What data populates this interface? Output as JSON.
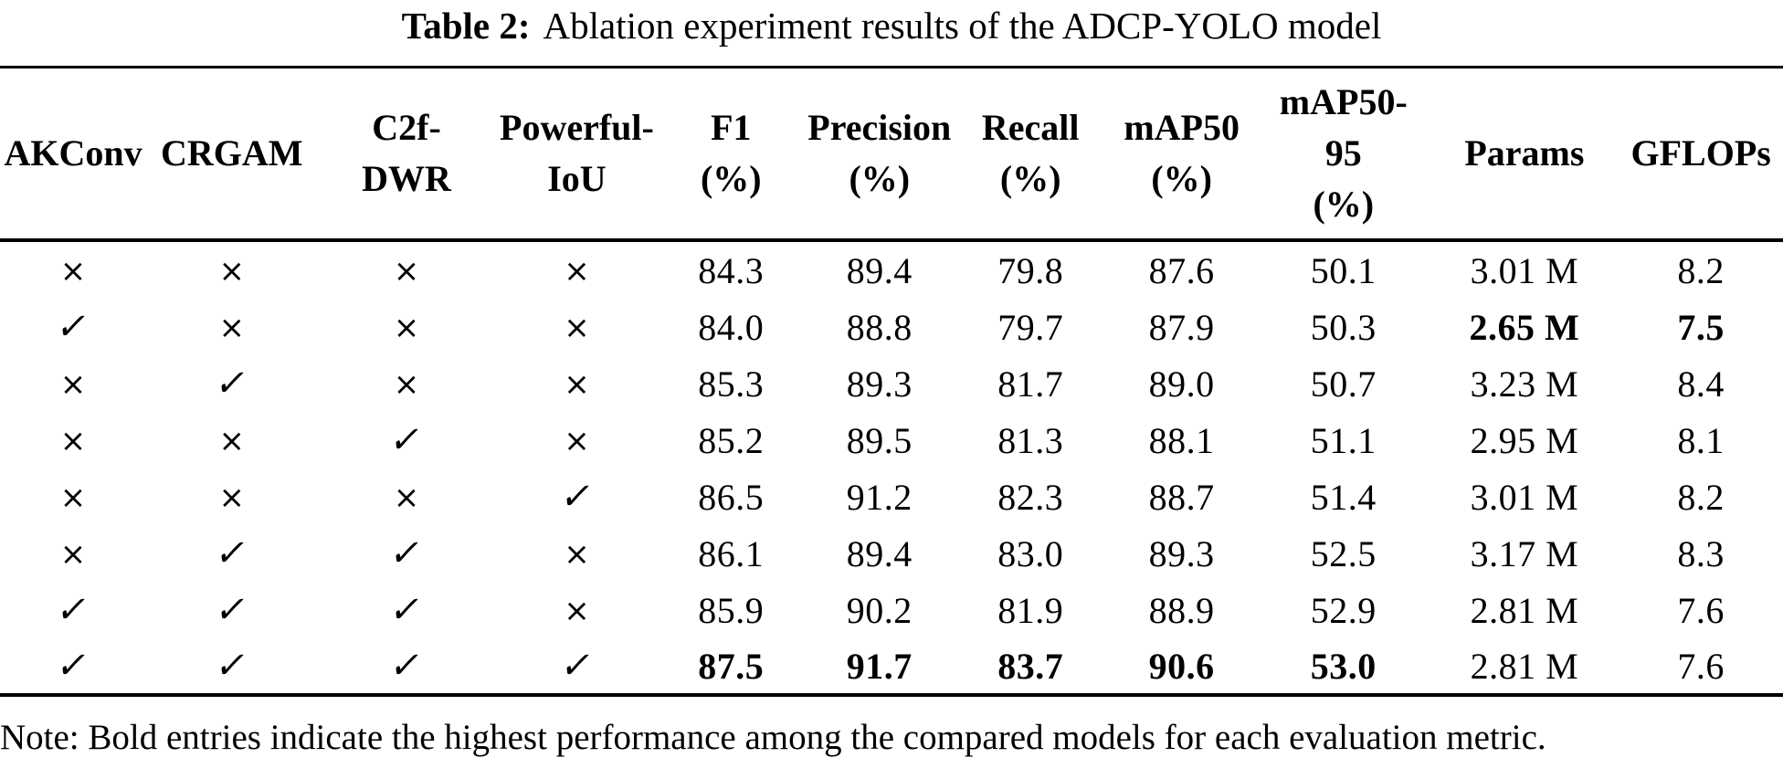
{
  "title": {
    "label": "Table 2:",
    "text": "Ablation experiment results of the ADCP-YOLO model"
  },
  "table": {
    "headers": [
      [
        "AKConv"
      ],
      [
        "CRGAM"
      ],
      [
        "C2f-",
        "DWR"
      ],
      [
        "Powerful-",
        "IoU"
      ],
      [
        "F1",
        "(%)"
      ],
      [
        "Precision",
        "(%)"
      ],
      [
        "Recall",
        "(%)"
      ],
      [
        "mAP50",
        "(%)"
      ],
      [
        "mAP50-",
        "95",
        "(%)"
      ],
      [
        "Params"
      ],
      [
        "GFLOPs"
      ]
    ],
    "column_keys": [
      "akconv",
      "crgam",
      "c2f-dwr",
      "powerful-iou",
      "f1-pct",
      "precision-pct",
      "recall-pct",
      "map50-pct",
      "map50-95-pct",
      "params",
      "gflops"
    ],
    "symbols": {
      "check": "✓",
      "cross": "×"
    },
    "rows": [
      {
        "cells": [
          "×",
          "×",
          "×",
          "×",
          "84.3",
          "89.4",
          "79.8",
          "87.6",
          "50.1",
          "3.01 M",
          "8.2"
        ],
        "bold": []
      },
      {
        "cells": [
          "✓",
          "×",
          "×",
          "×",
          "84.0",
          "88.8",
          "79.7",
          "87.9",
          "50.3",
          "2.65 M",
          "7.5"
        ],
        "bold": [
          9,
          10
        ]
      },
      {
        "cells": [
          "×",
          "✓",
          "×",
          "×",
          "85.3",
          "89.3",
          "81.7",
          "89.0",
          "50.7",
          "3.23 M",
          "8.4"
        ],
        "bold": []
      },
      {
        "cells": [
          "×",
          "×",
          "✓",
          "×",
          "85.2",
          "89.5",
          "81.3",
          "88.1",
          "51.1",
          "2.95 M",
          "8.1"
        ],
        "bold": []
      },
      {
        "cells": [
          "×",
          "×",
          "×",
          "✓",
          "86.5",
          "91.2",
          "82.3",
          "88.7",
          "51.4",
          "3.01 M",
          "8.2"
        ],
        "bold": []
      },
      {
        "cells": [
          "×",
          "✓",
          "✓",
          "×",
          "86.1",
          "89.4",
          "83.0",
          "89.3",
          "52.5",
          "3.17 M",
          "8.3"
        ],
        "bold": []
      },
      {
        "cells": [
          "✓",
          "✓",
          "✓",
          "×",
          "85.9",
          "90.2",
          "81.9",
          "88.9",
          "52.9",
          "2.81 M",
          "7.6"
        ],
        "bold": []
      },
      {
        "cells": [
          "✓",
          "✓",
          "✓",
          "✓",
          "87.5",
          "91.7",
          "83.7",
          "90.6",
          "53.0",
          "2.81 M",
          "7.6"
        ],
        "bold": [
          4,
          5,
          6,
          7,
          8
        ]
      }
    ]
  },
  "note": "Note: Bold entries indicate the highest performance among the compared models for each evaluation metric."
}
